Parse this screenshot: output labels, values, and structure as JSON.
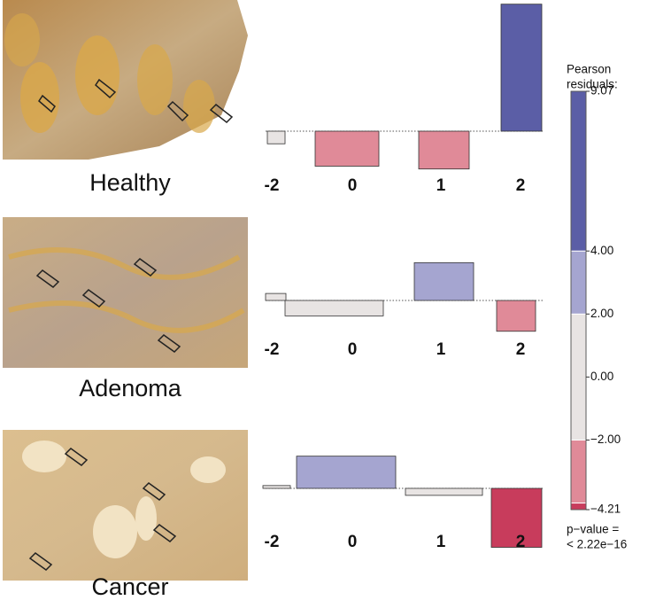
{
  "chart_data": {
    "type": "association",
    "categories": [
      "-2",
      "0",
      "1",
      "2"
    ],
    "rows": [
      {
        "label": "Healthy",
        "values": [
          -0.9,
          -2.5,
          -2.7,
          9.07
        ]
      },
      {
        "label": "Adenoma",
        "values": [
          0.5,
          -1.1,
          2.7,
          -2.2
        ]
      },
      {
        "label": "Cancer",
        "values": [
          0.2,
          2.3,
          -0.5,
          -4.21
        ]
      }
    ],
    "legend": {
      "title": [
        "Pearson",
        "residuals:"
      ],
      "lim": [
        -4.21,
        9.07
      ],
      "ticks": [
        9.07,
        {
          "value": 4,
          "label": "4.00"
        },
        {
          "value": 2,
          "label": "2.00"
        },
        {
          "value": 0,
          "label": "0.00"
        },
        {
          "value": -2,
          "label": "−2.00"
        },
        {
          "value": -4.21,
          "label": "−4.21"
        }
      ],
      "breaks": [
        -4.21,
        -4,
        -2,
        2,
        4,
        9.07
      ],
      "colors": [
        "#c83c5c",
        "#e08a98",
        "#e8e4e3",
        "#a5a5d0",
        "#5b5ea6"
      ],
      "note": [
        "p−value =",
        "< 2.22e−16"
      ]
    }
  }
}
